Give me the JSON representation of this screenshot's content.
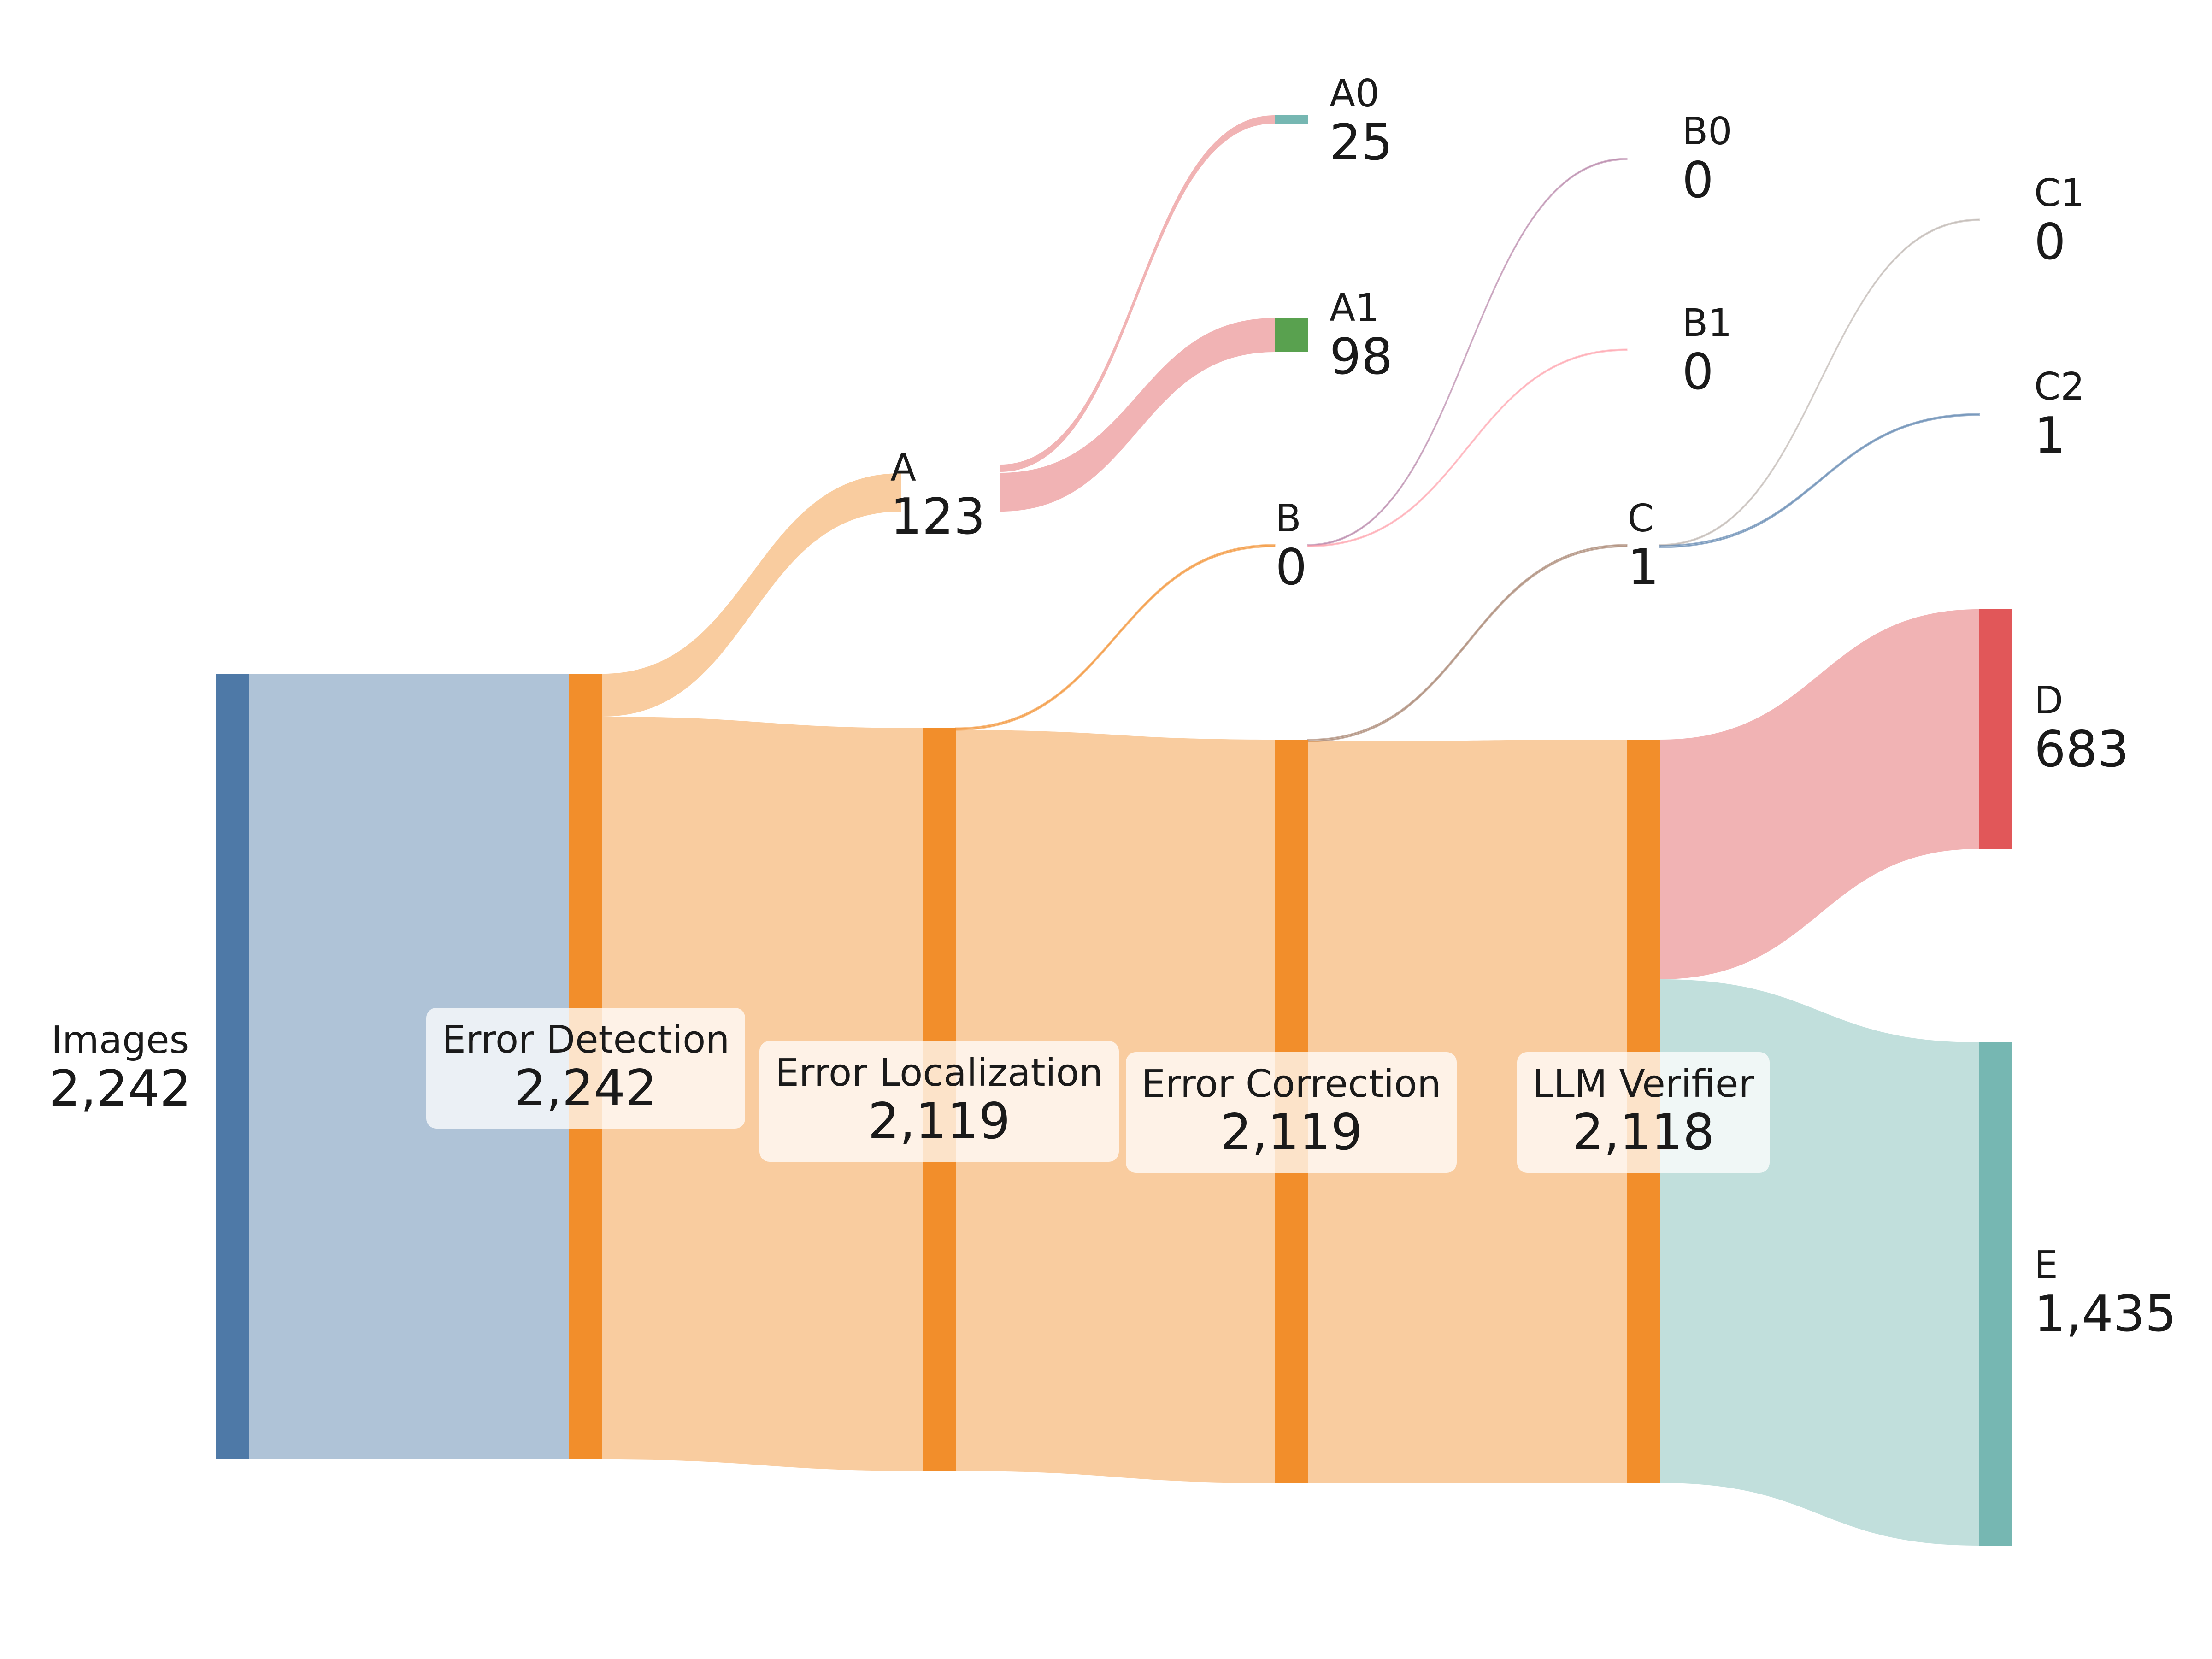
{
  "chart_data": {
    "type": "sankey",
    "nodes": [
      {
        "id": "images",
        "name": "Images",
        "value": "2,242",
        "color": "#4e79a7"
      },
      {
        "id": "detection",
        "name": "Error Detection",
        "value": "2,242",
        "color": "#f28e2b"
      },
      {
        "id": "A",
        "name": "A",
        "value": "123",
        "color": "#f28e2b"
      },
      {
        "id": "localization",
        "name": "Error Localization",
        "value": "2,119",
        "color": "#f28e2b"
      },
      {
        "id": "A0",
        "name": "A0",
        "value": "25",
        "color": "#76b7b2"
      },
      {
        "id": "A1",
        "name": "A1",
        "value": "98",
        "color": "#59a14f"
      },
      {
        "id": "B",
        "name": "B",
        "value": "0",
        "color": "#f28e2b"
      },
      {
        "id": "correction",
        "name": "Error Correction",
        "value": "2,119",
        "color": "#f28e2b"
      },
      {
        "id": "B0",
        "name": "B0",
        "value": "0",
        "color": "#b07aa1"
      },
      {
        "id": "B1",
        "name": "B1",
        "value": "0",
        "color": "#ff9da7"
      },
      {
        "id": "C",
        "name": "C",
        "value": "1",
        "color": "#f28e2b"
      },
      {
        "id": "verifier",
        "name": "LLM Verifier",
        "value": "2,118",
        "color": "#f28e2b"
      },
      {
        "id": "C1",
        "name": "C1",
        "value": "0",
        "color": "#bab0ac"
      },
      {
        "id": "C2",
        "name": "C2",
        "value": "1",
        "color": "#4e79a7"
      },
      {
        "id": "D",
        "name": "D",
        "value": "683",
        "color": "#e15759"
      },
      {
        "id": "E",
        "name": "E",
        "value": "1,435",
        "color": "#76b7b2"
      }
    ],
    "links": [
      {
        "source": "images",
        "target": "detection",
        "value": 2242,
        "color": "#4e79a7"
      },
      {
        "source": "detection",
        "target": "A",
        "value": 123,
        "color": "#f28e2b"
      },
      {
        "source": "detection",
        "target": "localization",
        "value": 2119,
        "color": "#f28e2b"
      },
      {
        "source": "A",
        "target": "A0",
        "value": 25,
        "color": "#e15759"
      },
      {
        "source": "A",
        "target": "A1",
        "value": 98,
        "color": "#e15759"
      },
      {
        "source": "localization",
        "target": "B",
        "value": 0,
        "color": "#f28e2b"
      },
      {
        "source": "localization",
        "target": "correction",
        "value": 2119,
        "color": "#f28e2b"
      },
      {
        "source": "B",
        "target": "B0",
        "value": 0,
        "color": "#b07aa1"
      },
      {
        "source": "B",
        "target": "B1",
        "value": 0,
        "color": "#ff9da7"
      },
      {
        "source": "correction",
        "target": "C",
        "value": 1,
        "color": "#9c755f"
      },
      {
        "source": "correction",
        "target": "verifier",
        "value": 2118,
        "color": "#f28e2b"
      },
      {
        "source": "C",
        "target": "C1",
        "value": 0,
        "color": "#bab0ac"
      },
      {
        "source": "C",
        "target": "C2",
        "value": 1,
        "color": "#4e79a7"
      },
      {
        "source": "verifier",
        "target": "D",
        "value": 683,
        "color": "#e15759"
      },
      {
        "source": "verifier",
        "target": "E",
        "value": 1435,
        "color": "#76b7b2"
      }
    ]
  }
}
